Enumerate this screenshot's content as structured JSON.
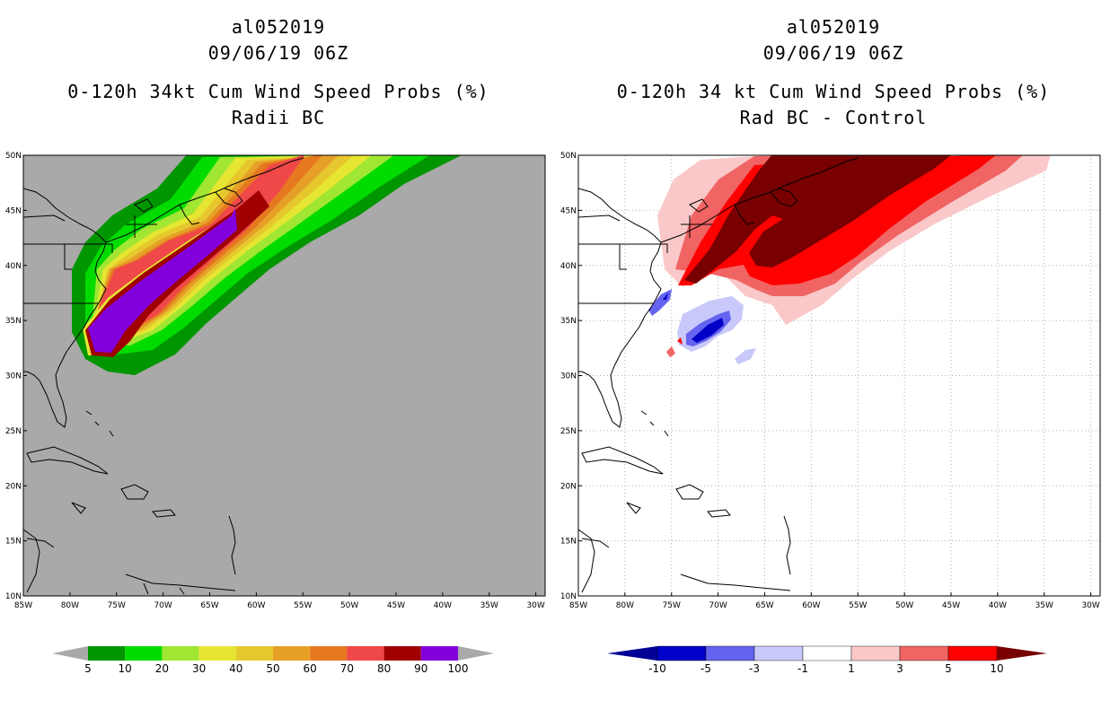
{
  "left_panel": {
    "title_line1": "al052019",
    "title_line2": "09/06/19 06Z",
    "title_line3": "0-120h 34kt Cum Wind Speed Probs (%)",
    "title_line4": "Radii BC"
  },
  "right_panel": {
    "title_line1": "al052019",
    "title_line2": "09/06/19 06Z",
    "title_line3": "0-120h 34 kt Cum Wind Speed Probs (%)",
    "title_line4": "Rad BC - Control"
  },
  "map_axes": {
    "lon_labels": [
      "85W",
      "80W",
      "75W",
      "70W",
      "65W",
      "60W",
      "55W",
      "50W",
      "45W",
      "40W",
      "35W",
      "30W"
    ],
    "lat_labels": [
      "50N",
      "45N",
      "40N",
      "35N",
      "30N",
      "25N",
      "20N",
      "15N",
      "10N"
    ],
    "lon_range": [
      -85,
      -29
    ],
    "lat_range": [
      10,
      50
    ]
  },
  "left_colorbar": {
    "labels": [
      "5",
      "10",
      "20",
      "30",
      "40",
      "50",
      "60",
      "70",
      "80",
      "90",
      "100"
    ],
    "colors": [
      "#009600",
      "#00dc00",
      "#a0e632",
      "#e6e632",
      "#e6c82e",
      "#e6a028",
      "#e67820",
      "#f04848",
      "#a00000",
      "#8200dc"
    ],
    "end_color": "#a9a9a9"
  },
  "right_colorbar": {
    "labels": [
      "-10",
      "-5",
      "-3",
      "-1",
      "1",
      "3",
      "5",
      "10"
    ],
    "colors": [
      "#0000c8",
      "#6464f0",
      "#c8c8fa",
      "#ffffff",
      "#fac8c8",
      "#f06464",
      "#ff0000"
    ],
    "low_color": "#000096",
    "high_color": "#780000"
  },
  "colors": {
    "ocean_gray": "#a9a9a9",
    "grid_dot": "#b0b0b0"
  }
}
